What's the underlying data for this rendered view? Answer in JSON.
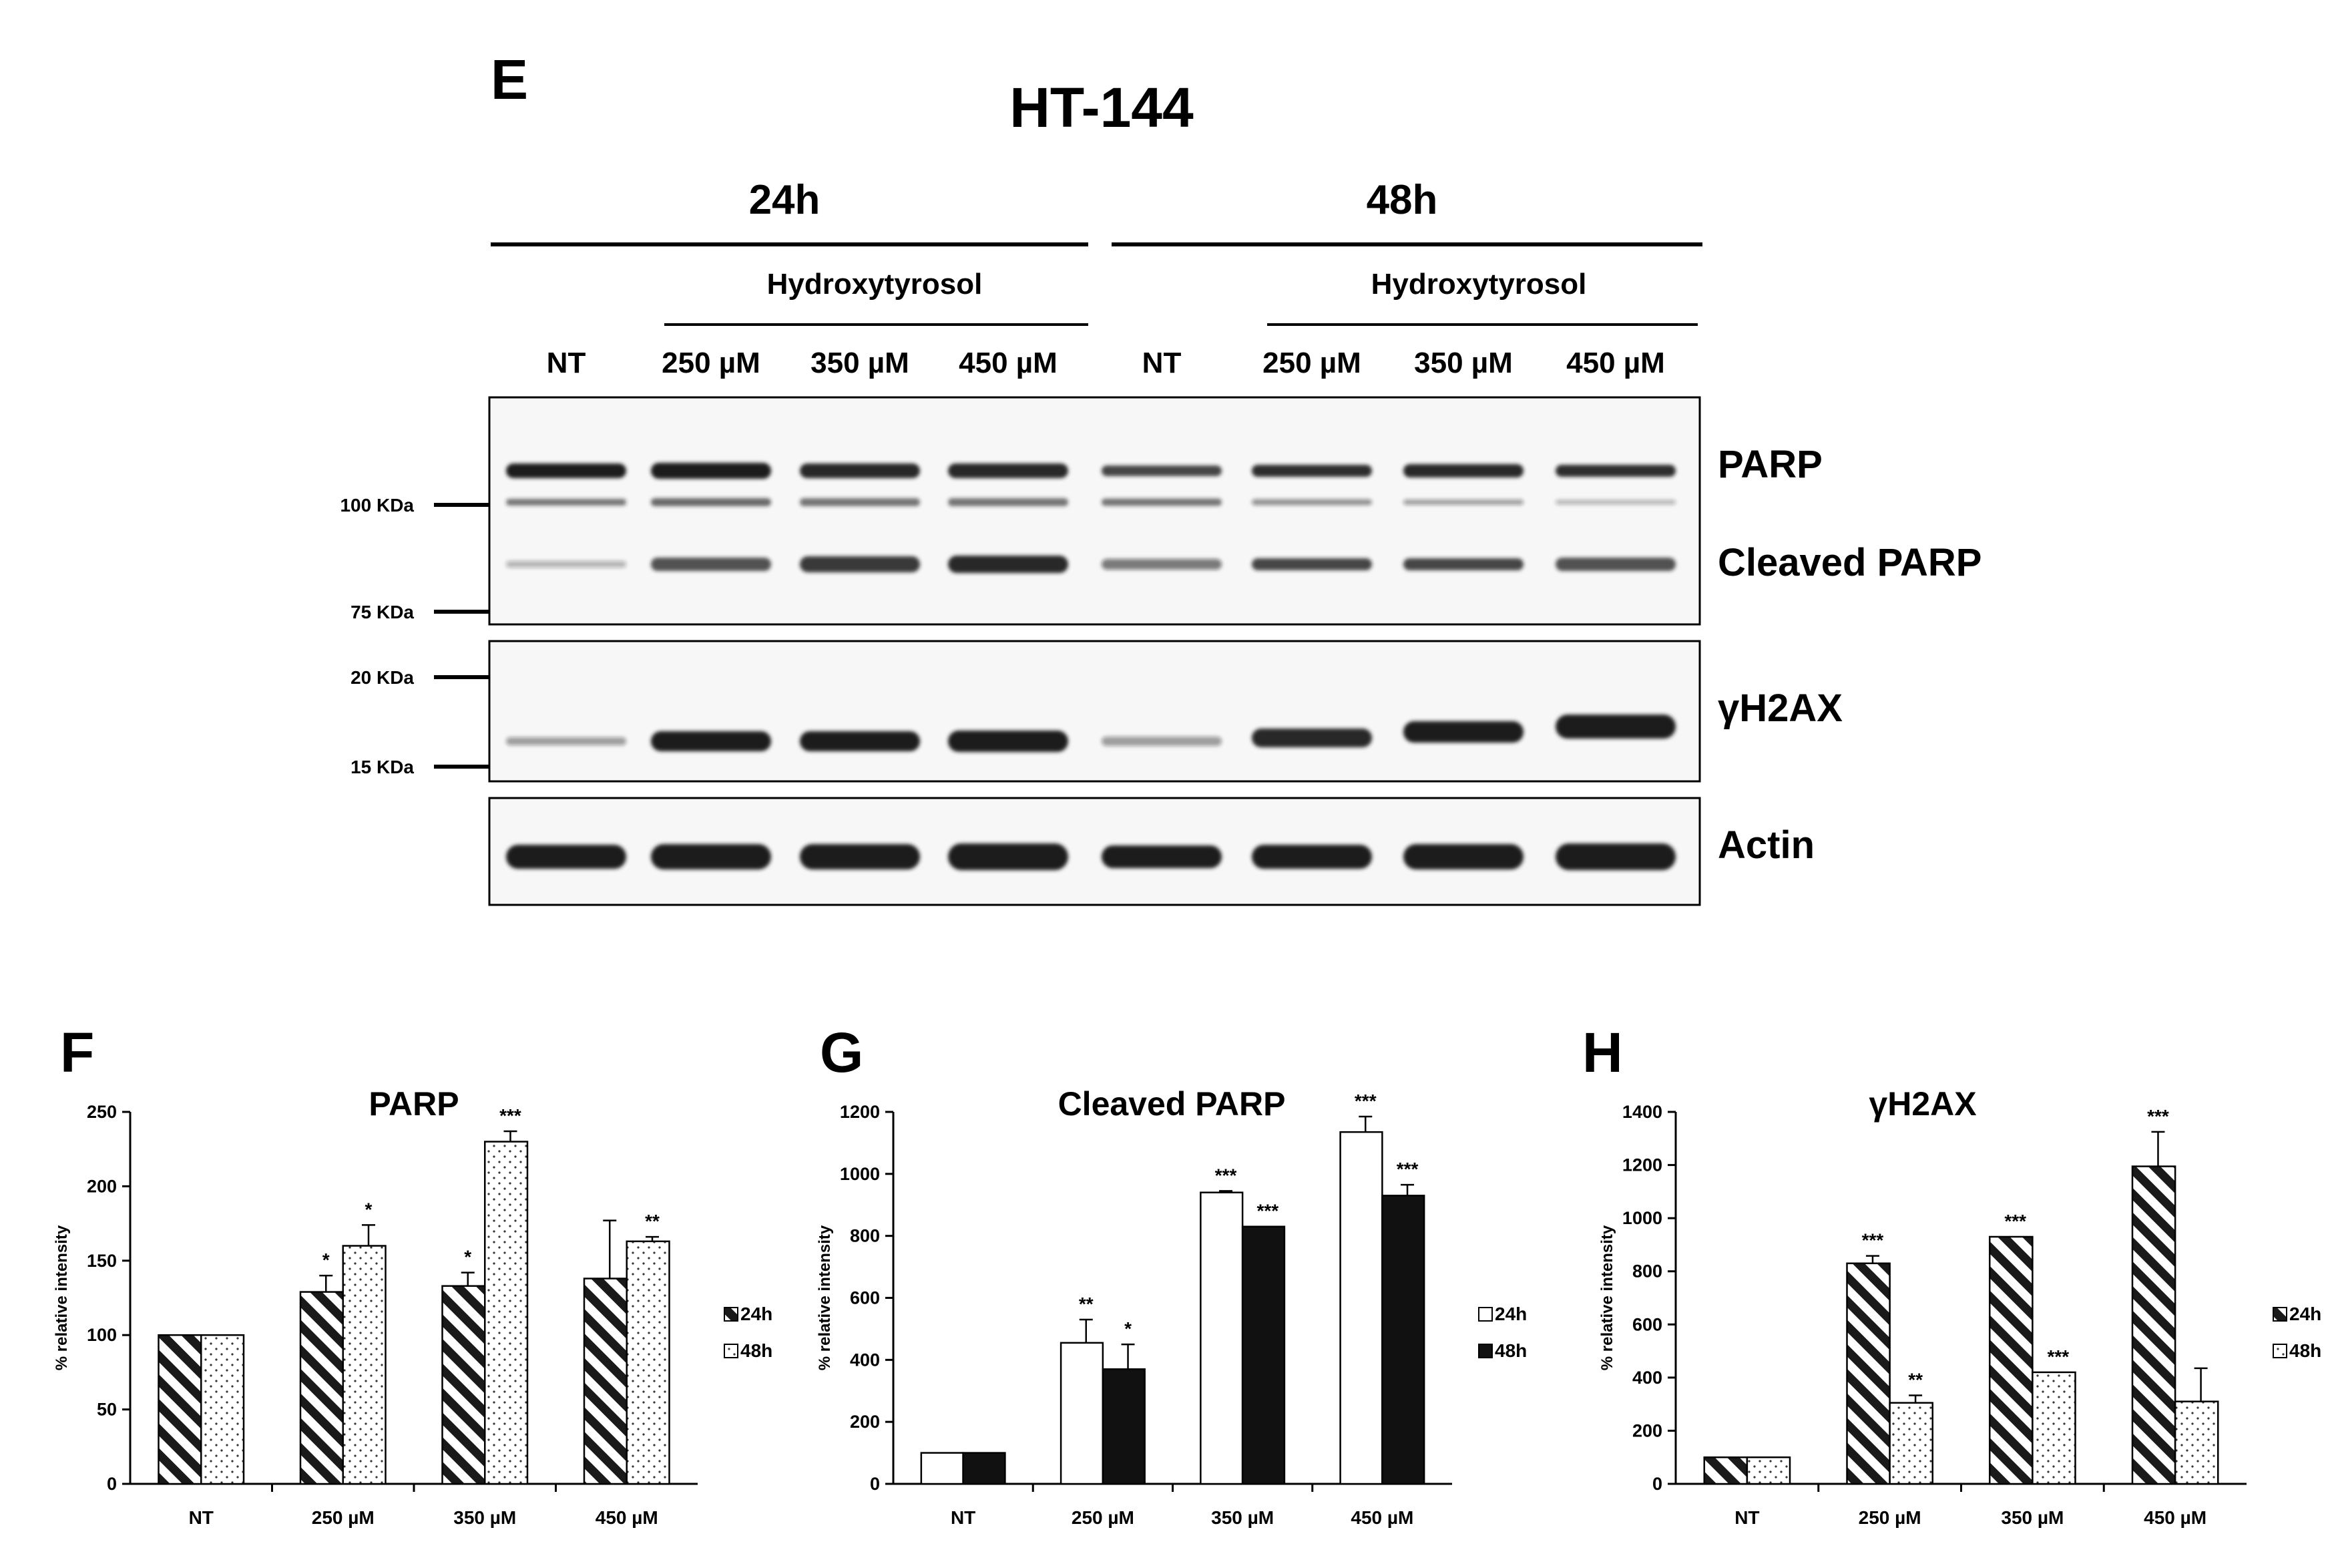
{
  "blot": {
    "panel_letter": "E",
    "title": "HT-144",
    "time_groups": [
      "24h",
      "48h"
    ],
    "treatment_label": "Hydroxytyrosol",
    "lanes": [
      "NT",
      "250 µM",
      "350 µM",
      "450 µM",
      "NT",
      "250 µM",
      "350 µM",
      "450 µM"
    ],
    "markers": [
      "100 KDa",
      "75 KDa",
      "20 KDa",
      "15 KDa"
    ],
    "band_labels": [
      "PARP",
      "Cleaved PARP",
      "γH2AX",
      "Actin"
    ],
    "colors": {
      "band": "#1a1a1a",
      "background": "#ffffff"
    }
  },
  "chart_data": [
    {
      "type": "bar",
      "panel_letter": "F",
      "title": "PARP",
      "ylabel": "% relative intensity",
      "xlabel": "",
      "categories": [
        "NT",
        "250 µM",
        "350 µM",
        "450 µM"
      ],
      "ylim": [
        0,
        250
      ],
      "yticks": [
        0,
        50,
        100,
        150,
        200,
        250
      ],
      "series": [
        {
          "name": "24h",
          "pattern": "diag",
          "values": [
            100,
            129,
            133,
            138
          ],
          "errors": [
            0,
            11,
            9,
            39
          ],
          "significance": [
            "",
            "*",
            "*",
            ""
          ]
        },
        {
          "name": "48h",
          "pattern": "dots",
          "values": [
            100,
            160,
            230,
            163
          ],
          "errors": [
            0,
            14,
            7,
            3
          ],
          "significance": [
            "",
            "*",
            "***",
            "**"
          ]
        }
      ],
      "legend": "right"
    },
    {
      "type": "bar",
      "panel_letter": "G",
      "title": "Cleaved PARP",
      "ylabel": "% relative intensity",
      "xlabel": "",
      "categories": [
        "NT",
        "250 µM",
        "350 µM",
        "450 µM"
      ],
      "ylim": [
        0,
        1300
      ],
      "yticks": [
        0,
        200,
        400,
        600,
        800,
        1000,
        1200
      ],
      "series": [
        {
          "name": "24h",
          "pattern": "white",
          "values": [
            100,
            455,
            940,
            1135
          ],
          "errors": [
            0,
            75,
            5,
            50
          ],
          "significance": [
            "",
            "**",
            "***",
            "***"
          ]
        },
        {
          "name": "48h",
          "pattern": "black",
          "values": [
            100,
            370,
            830,
            930
          ],
          "errors": [
            0,
            80,
            0,
            35
          ],
          "significance": [
            "",
            "*",
            "***",
            "***"
          ]
        }
      ],
      "legend": "right"
    },
    {
      "type": "bar",
      "panel_letter": "H",
      "title": "γH2AX",
      "ylabel": "% relative intensity",
      "xlabel": "",
      "categories": [
        "NT",
        "250 µM",
        "350 µM",
        "450 µM"
      ],
      "ylim": [
        0,
        1400
      ],
      "yticks": [
        0,
        200,
        400,
        600,
        800,
        1000,
        1200,
        1400
      ],
      "series": [
        {
          "name": "24h",
          "pattern": "diag",
          "values": [
            100,
            830,
            930,
            1195
          ],
          "errors": [
            0,
            28,
            0,
            130
          ],
          "significance": [
            "",
            "***",
            "***",
            "***"
          ]
        },
        {
          "name": "48h",
          "pattern": "dots",
          "values": [
            100,
            305,
            420,
            310
          ],
          "errors": [
            0,
            28,
            0,
            125
          ],
          "significance": [
            "",
            "**",
            "***",
            ""
          ]
        }
      ],
      "legend": "right"
    }
  ]
}
